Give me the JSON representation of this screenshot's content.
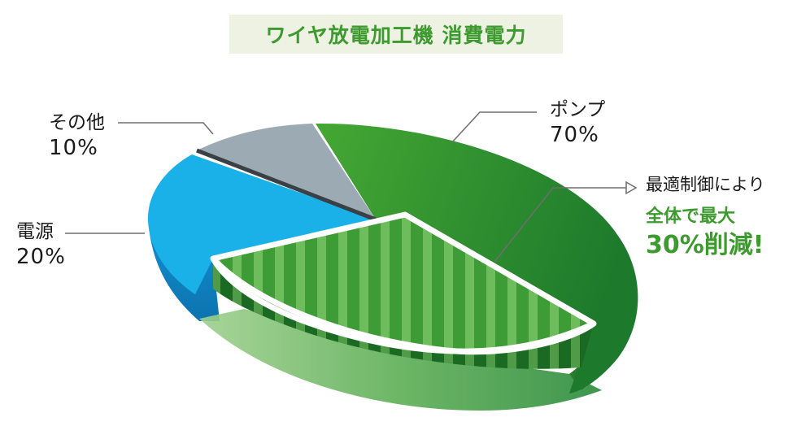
{
  "chart_data": {
    "type": "pie",
    "title": "ワイヤ放電加工機 消費電力",
    "slices": [
      {
        "label": "ポンプ",
        "value": 70,
        "value_label": "70%",
        "color": "#3a9a32"
      },
      {
        "label": "電源",
        "value": 20,
        "value_label": "20%",
        "color": "#1ab0e8"
      },
      {
        "label": "その他",
        "value": 10,
        "value_label": "10%",
        "color": "#9caab4"
      }
    ],
    "annotation": {
      "line1": "最適制御により",
      "line2": "全体で最大",
      "line3": "30%削減!",
      "reduction_percent": 30
    },
    "legend": "none",
    "grid": false,
    "style": "3d-exploded-pie"
  }
}
